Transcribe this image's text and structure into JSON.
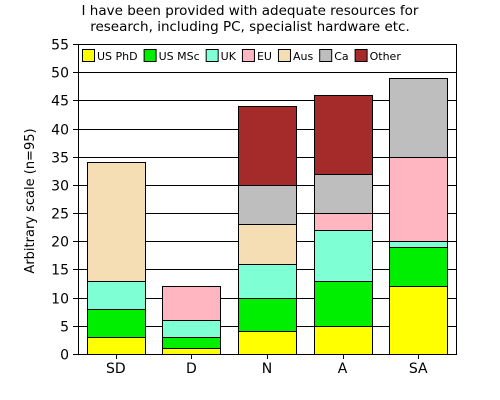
{
  "chart_data": {
    "type": "bar",
    "stacked": true,
    "title": "I have been provided with adequate resources for research, including PC, specialist hardware etc.",
    "title_lines": [
      "I have been provided with adequate resources for",
      "research, including PC, specialist hardware etc."
    ],
    "xlabel": "",
    "ylabel": "Arbitrary scale (n=95)",
    "ylim": [
      0,
      55
    ],
    "yticks": [
      0,
      5,
      10,
      15,
      20,
      25,
      30,
      35,
      40,
      45,
      50,
      55
    ],
    "grid": true,
    "legend_position": "top",
    "categories": [
      "SD",
      "D",
      "N",
      "A",
      "SA"
    ],
    "series": [
      {
        "name": "US PhD",
        "color": "#ffff00",
        "values": [
          3,
          1,
          4,
          5,
          12
        ]
      },
      {
        "name": "US MSc",
        "color": "#00ee00",
        "values": [
          5,
          2,
          6,
          8,
          7
        ]
      },
      {
        "name": "UK",
        "color": "#7fffd4",
        "values": [
          5,
          3,
          6,
          9,
          1
        ]
      },
      {
        "name": "EU",
        "color": "#ffb6c1",
        "values": [
          0,
          6,
          0,
          3,
          15
        ]
      },
      {
        "name": "Aus",
        "color": "#f5deb3",
        "values": [
          21,
          0,
          7,
          0,
          0
        ]
      },
      {
        "name": "Ca",
        "color": "#bebebe",
        "values": [
          0,
          0,
          7,
          7,
          14
        ]
      },
      {
        "name": "Other",
        "color": "#a52a2a",
        "values": [
          0,
          0,
          14,
          14,
          0
        ]
      }
    ]
  }
}
